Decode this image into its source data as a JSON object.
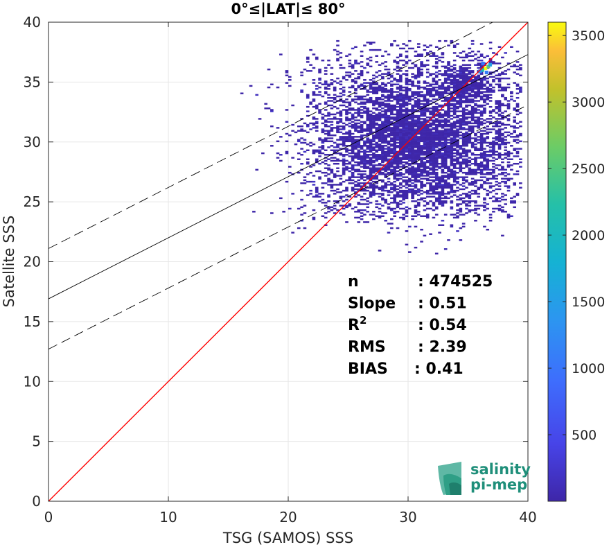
{
  "chart_data": {
    "type": "heatmap",
    "title": "0°≤|LAT|≤ 80°",
    "xlabel": "TSG (SAMOS) SSS",
    "ylabel": "Satellite SSS",
    "xlim": [
      0,
      40
    ],
    "ylim": [
      0,
      40
    ],
    "xticks": [
      "0",
      "10",
      "20",
      "30",
      "40"
    ],
    "yticks": [
      "0",
      "5",
      "10",
      "15",
      "20",
      "25",
      "30",
      "35",
      "40"
    ],
    "grid": true,
    "colorbar": {
      "range": [
        0,
        3600
      ],
      "ticks": [
        "500",
        "1000",
        "1500",
        "2000",
        "2500",
        "3000",
        "3500"
      ],
      "colormap": "parula"
    },
    "lines": [
      {
        "kind": "identity",
        "color": "#ff0000",
        "style": "solid",
        "x": [
          0,
          40
        ],
        "y": [
          0,
          40
        ]
      },
      {
        "kind": "regression",
        "color": "#000000",
        "style": "solid",
        "x": [
          0,
          40
        ],
        "y": [
          16.9,
          37.3
        ]
      },
      {
        "kind": "upper-bound",
        "color": "#000000",
        "style": "dashed",
        "x": [
          0,
          40
        ],
        "y": [
          21.1,
          41.5
        ]
      },
      {
        "kind": "lower-bound",
        "color": "#000000",
        "style": "dashed",
        "x": [
          0,
          40
        ],
        "y": [
          12.7,
          33.1
        ]
      }
    ],
    "density": {
      "main_cluster": {
        "x_center": 30,
        "y_center": 30,
        "x_range": [
          22,
          37
        ],
        "y_range": [
          24,
          37
        ]
      },
      "peak": {
        "x": 36.3,
        "y": 36.0,
        "count": 3600
      }
    },
    "annotations": [
      {
        "label": "n",
        "value": ": 474525"
      },
      {
        "label": "Slope",
        "value": ": 0.51"
      },
      {
        "label": "R",
        "sup": "2",
        "value": ": 0.54"
      },
      {
        "label": "RMS",
        "value": ": 2.39"
      },
      {
        "label": "BIAS",
        "value": ": 0.41"
      }
    ]
  },
  "logo": {
    "line1": "salinity",
    "line2": "pi-mep"
  },
  "colors": {
    "identity": "#ff0000",
    "low": "#3e26a8",
    "high": "#f9fb0e"
  }
}
